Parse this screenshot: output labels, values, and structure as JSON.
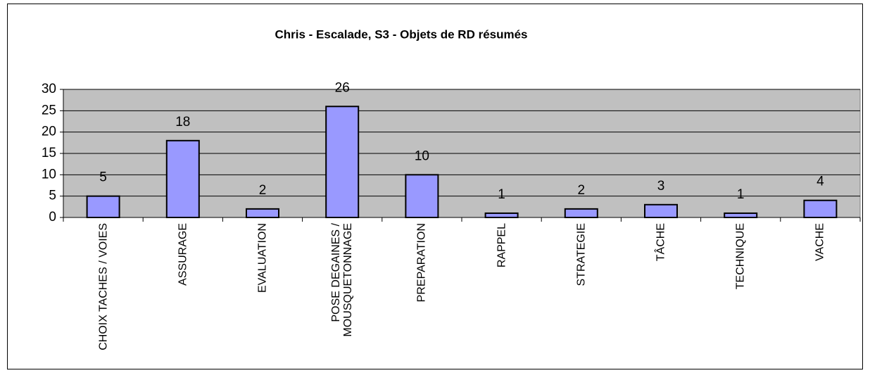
{
  "chart_data": {
    "type": "bar",
    "title": "Chris - Escalade, S3 - Objets de RD résumés",
    "categories": [
      "CHOIX TACHES / VOIES",
      "ASSURAGE",
      "EVALUATION",
      "POSE DEGAINES / MOUSQUETONNAGE",
      "PREPARATION",
      "RAPPEL",
      "STRATEGIE",
      "TÂCHE",
      "TECHNIQUE",
      "VACHE"
    ],
    "values": [
      5,
      18,
      2,
      26,
      10,
      1,
      2,
      3,
      1,
      4
    ],
    "color": "#9999ff",
    "ylim": [
      0,
      30
    ],
    "yticks": [
      0,
      5,
      10,
      15,
      20,
      25,
      30
    ],
    "grid": true
  }
}
